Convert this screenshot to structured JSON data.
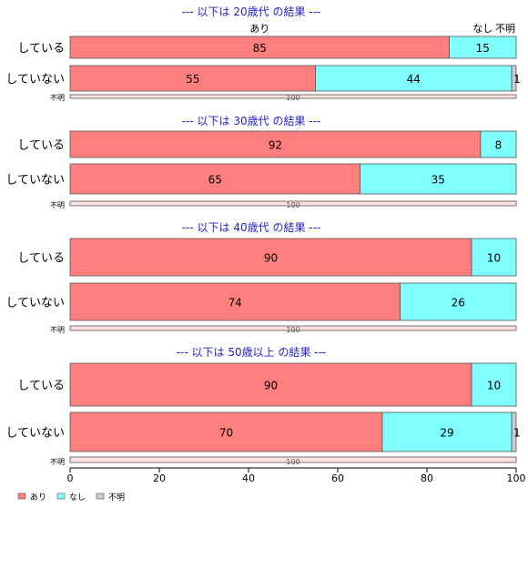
{
  "chart_data": {
    "type": "bar",
    "orientation": "horizontal-stacked-100",
    "xlim": [
      0,
      100
    ],
    "x_ticks": [
      0,
      20,
      40,
      60,
      80,
      100
    ],
    "grid": false,
    "legend_position": "bottom-left",
    "column_headers": [
      "あり",
      "なし",
      "不明"
    ],
    "legend": [
      "あり",
      "なし",
      "不明"
    ],
    "colors": {
      "あり": "#ff7f7f",
      "なし": "#7fffff",
      "不明": "#cccccc",
      "unknown_row": "#ffe0e0",
      "title": "#1f1fcf"
    },
    "panels": [
      {
        "title": "--- 以下は 20歳代 の結果 ---",
        "rows": [
          {
            "label": "している",
            "values": [
              85,
              15,
              0
            ]
          },
          {
            "label": "していない",
            "values": [
              55,
              44,
              1
            ]
          }
        ],
        "unknown_row": {
          "label": "不明",
          "value": 100
        }
      },
      {
        "title": "--- 以下は 30歳代 の結果 ---",
        "rows": [
          {
            "label": "している",
            "values": [
              92,
              8,
              0
            ]
          },
          {
            "label": "していない",
            "values": [
              65,
              35,
              0
            ]
          }
        ],
        "unknown_row": {
          "label": "不明",
          "value": 100
        }
      },
      {
        "title": "--- 以下は 40歳代 の結果 ---",
        "rows": [
          {
            "label": "している",
            "values": [
              90,
              10,
              0
            ]
          },
          {
            "label": "していない",
            "values": [
              74,
              26,
              0
            ]
          }
        ],
        "unknown_row": {
          "label": "不明",
          "value": 100
        }
      },
      {
        "title": "--- 以下は 50歳以上 の結果 ---",
        "rows": [
          {
            "label": "している",
            "values": [
              90,
              10,
              0
            ]
          },
          {
            "label": "していない",
            "values": [
              70,
              29,
              1
            ]
          }
        ],
        "unknown_row": {
          "label": "不明",
          "value": 100
        }
      }
    ]
  }
}
